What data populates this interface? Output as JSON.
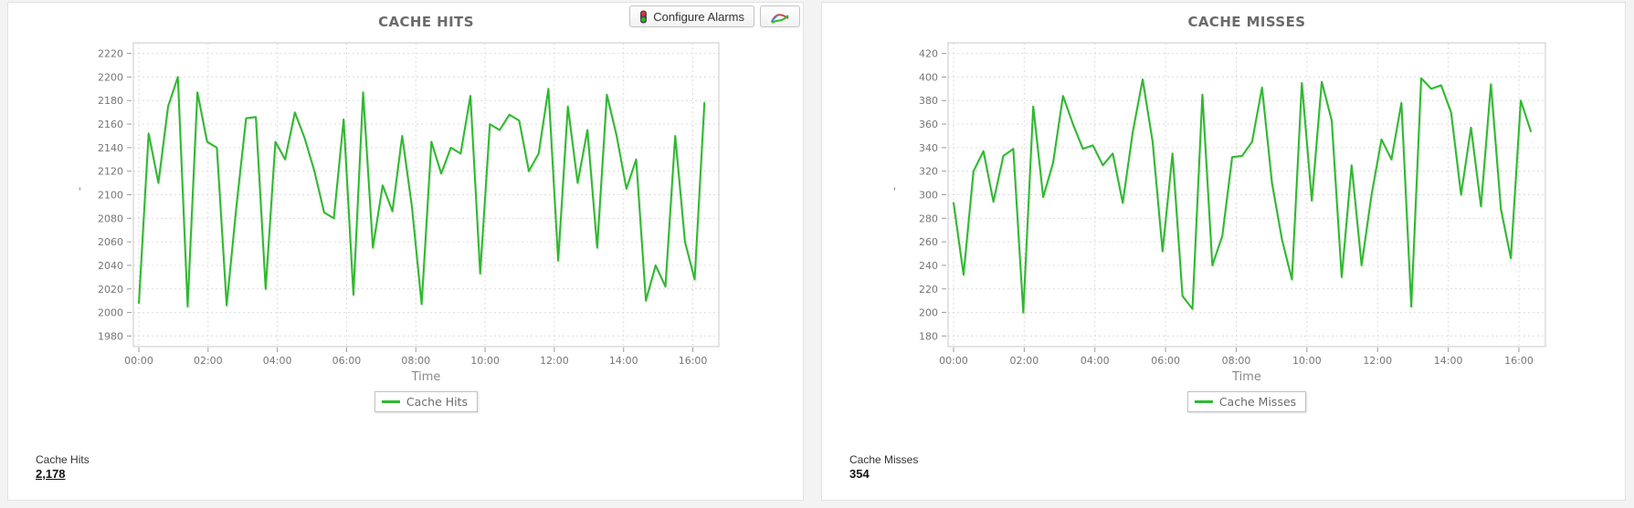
{
  "toolbar": {
    "configure_alarms_label": "Configure Alarms"
  },
  "panels": [
    {
      "stat_label": "Cache Hits",
      "stat_value": "2,178",
      "chart_data": {
        "type": "line",
        "title": "CACHE HITS",
        "xlabel": "Time",
        "ylabel": "'",
        "legend": "Cache Hits",
        "legend_position": "south",
        "grid": true,
        "line_color": "#2eb82e",
        "ylim": [
          1980,
          2220
        ],
        "ytick_step": 20,
        "x_ticks": [
          "00:00",
          "02:00",
          "04:00",
          "06:00",
          "08:00",
          "10:00",
          "12:00",
          "14:00",
          "16:00"
        ],
        "x_tick_minutes": [
          0,
          120,
          240,
          360,
          480,
          600,
          720,
          840,
          960
        ],
        "x_domain_minutes": [
          0,
          1005
        ],
        "values_span_minutes": 980,
        "values": [
          2008,
          2152,
          2110,
          2175,
          2200,
          2005,
          2187,
          2145,
          2140,
          2006,
          2090,
          2165,
          2166,
          2020,
          2145,
          2130,
          2170,
          2148,
          2120,
          2085,
          2080,
          2164,
          2015,
          2187,
          2055,
          2108,
          2086,
          2150,
          2090,
          2007,
          2145,
          2118,
          2140,
          2135,
          2184,
          2033,
          2160,
          2155,
          2168,
          2163,
          2120,
          2135,
          2190,
          2044,
          2175,
          2110,
          2155,
          2055,
          2185,
          2150,
          2105,
          2130,
          2010,
          2040,
          2022,
          2150,
          2060,
          2028,
          2178
        ]
      }
    },
    {
      "stat_label": "Cache Misses",
      "stat_value": "354",
      "chart_data": {
        "type": "line",
        "title": "CACHE MISSES",
        "xlabel": "Time",
        "ylabel": "'",
        "legend": "Cache Misses",
        "legend_position": "south",
        "grid": true,
        "line_color": "#2eb82e",
        "ylim": [
          180,
          420
        ],
        "ytick_step": 20,
        "x_ticks": [
          "00:00",
          "02:00",
          "04:00",
          "06:00",
          "08:00",
          "10:00",
          "12:00",
          "14:00",
          "16:00"
        ],
        "x_tick_minutes": [
          0,
          120,
          240,
          360,
          480,
          600,
          720,
          840,
          960
        ],
        "x_domain_minutes": [
          0,
          1005
        ],
        "values_span_minutes": 980,
        "values": [
          293,
          232,
          320,
          337,
          294,
          333,
          339,
          200,
          375,
          298,
          327,
          384,
          360,
          339,
          342,
          325,
          335,
          293,
          353,
          398,
          345,
          252,
          335,
          214,
          203,
          385,
          240,
          265,
          332,
          333,
          345,
          391,
          310,
          262,
          228,
          395,
          295,
          396,
          363,
          230,
          325,
          240,
          300,
          347,
          330,
          378,
          205,
          399,
          390,
          393,
          370,
          300,
          357,
          290,
          394,
          288,
          246,
          380,
          354
        ]
      }
    }
  ]
}
